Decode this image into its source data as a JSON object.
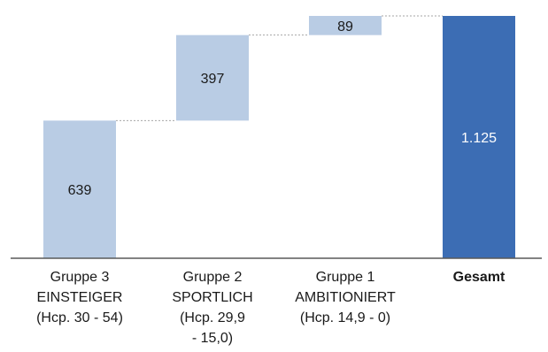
{
  "chart_data": {
    "type": "bar",
    "subtype": "waterfall",
    "title": "",
    "xlabel": "",
    "ylabel": "",
    "categories": [
      [
        "Gruppe 3",
        "EINSTEIGER",
        "(Hcp. 30 - 54)"
      ],
      [
        "Gruppe 2",
        "SPORTLICH",
        "(Hcp. 29,9",
        "- 15,0)"
      ],
      [
        "Gruppe 1",
        "AMBITIONIERT",
        "(Hcp. 14,9 - 0)"
      ],
      [
        "Gesamt"
      ]
    ],
    "values": [
      639,
      397,
      89,
      1125
    ],
    "value_labels": [
      "639",
      "397",
      "89",
      "1.125"
    ],
    "total_index": 3,
    "ylim": [
      0,
      1125
    ],
    "grid": false,
    "legend": "none",
    "colors": {
      "step": "#b9cce4",
      "total": "#3c6db4",
      "connector": "#a6a6a6",
      "axis": "#595959"
    }
  }
}
